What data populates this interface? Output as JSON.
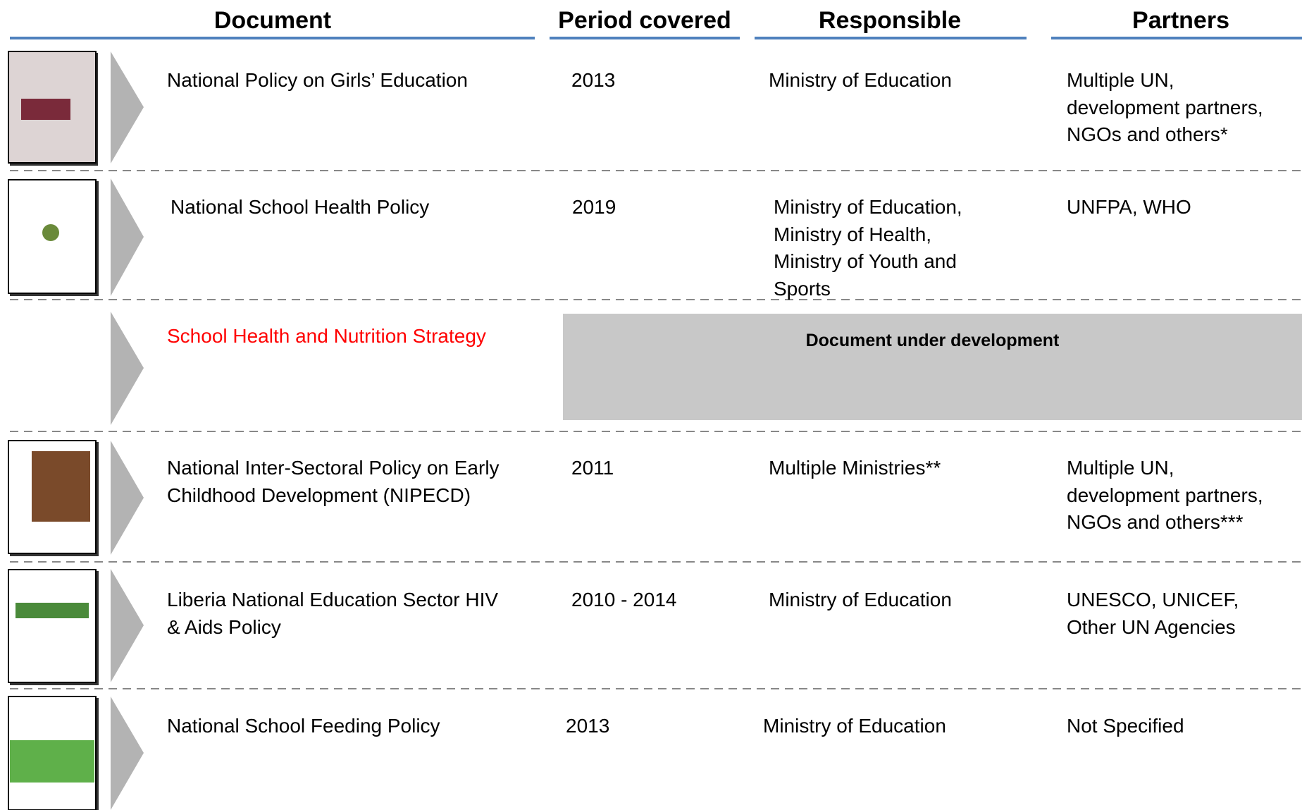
{
  "header": {
    "columns": [
      "Document",
      "Period covered",
      "Responsible",
      "Partners"
    ]
  },
  "rows": [
    {
      "document": [
        "National Policy on Girls’ Education"
      ],
      "period": [
        "2013"
      ],
      "responsible": [
        "Ministry of Education"
      ],
      "partners": [
        "Multiple UN,",
        "development partners,",
        "NGOs and others*"
      ]
    },
    {
      "document": [
        "National School Health Policy"
      ],
      "period": [
        "2019"
      ],
      "responsible": [
        "Ministry of Education,",
        "Ministry of Health,",
        "Ministry of Youth and",
        "Sports"
      ],
      "partners": [
        "UNFPA, WHO"
      ]
    },
    {
      "document": [
        "School Health and Nutrition Strategy"
      ],
      "note": "Document under development"
    },
    {
      "document": [
        "National Inter-Sectoral Policy on Early",
        "Childhood Development (NIPECD)"
      ],
      "period": [
        "2011"
      ],
      "responsible": [
        "Multiple Ministries**"
      ],
      "partners": [
        "Multiple UN,",
        "development partners,",
        "NGOs and others***"
      ]
    },
    {
      "document": [
        "Liberia National Education Sector HIV",
        "& Aids Policy"
      ],
      "period": [
        "2010 - 2014"
      ],
      "responsible": [
        "Ministry of Education"
      ],
      "partners": [
        "UNESCO, UNICEF,",
        "Other UN Agencies"
      ]
    },
    {
      "document": [
        "National School Feeding Policy"
      ],
      "period": [
        "2013"
      ],
      "responsible": [
        "Ministry of Education"
      ],
      "partners": [
        "Not Specified"
      ]
    }
  ]
}
